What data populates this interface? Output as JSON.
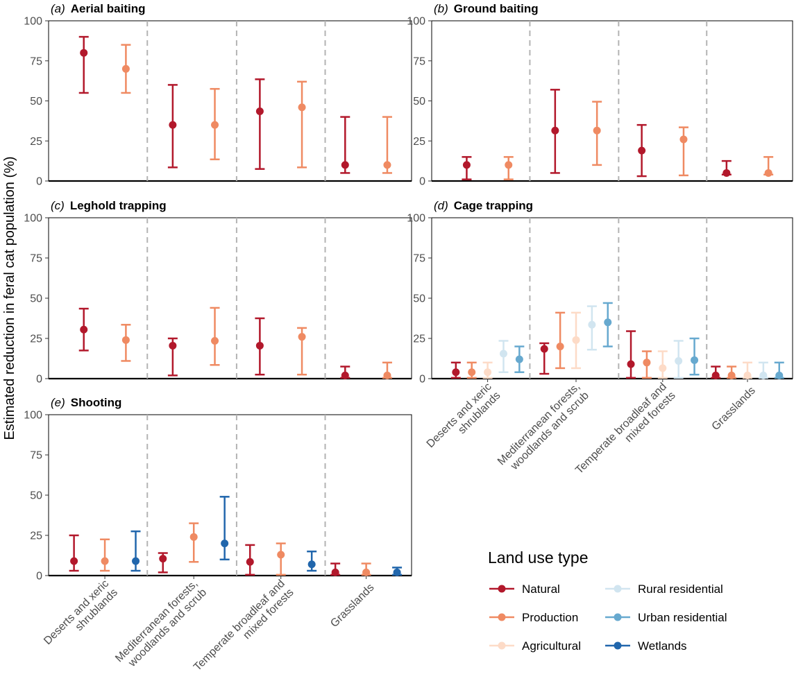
{
  "y_axis_label": "Estimated reduction in feral cat population (%)",
  "legend_title": "Land use type",
  "legend_items": [
    {
      "key": "natural",
      "label": "Natural",
      "color": "#b2182b"
    },
    {
      "key": "production",
      "label": "Production",
      "color": "#ef8a62"
    },
    {
      "key": "agricultural",
      "label": "Agricultural",
      "color": "#fddbc7"
    },
    {
      "key": "rural",
      "label": "Rural residential",
      "color": "#d1e5f0"
    },
    {
      "key": "urban",
      "label": "Urban residential",
      "color": "#67a9cf"
    },
    {
      "key": "wetlands",
      "label": "Wetlands",
      "color": "#2166ac"
    }
  ],
  "chart_data": [
    {
      "type": "scatter",
      "panel": "a",
      "letter": "(a)",
      "title": "Aerial baiting",
      "ylim": [
        0,
        100
      ],
      "yticks": [
        0,
        25,
        50,
        75,
        100
      ],
      "categories": [
        "Deserts and xeric shrublands",
        "Mediterranean forests, woodlands and scrub",
        "Temperate broadleaf and mixed forests",
        "Grasslands"
      ],
      "series": [
        {
          "key": "natural",
          "points": [
            {
              "c": 0,
              "y": 80,
              "lo": 55,
              "hi": 90
            },
            {
              "c": 1,
              "y": 35,
              "lo": 8.5,
              "hi": 60
            },
            {
              "c": 2,
              "y": 43.5,
              "lo": 7.5,
              "hi": 63.5
            },
            {
              "c": 3,
              "y": 10,
              "lo": 5,
              "hi": 40
            }
          ]
        },
        {
          "key": "production",
          "points": [
            {
              "c": 0,
              "y": 70,
              "lo": 55,
              "hi": 85
            },
            {
              "c": 1,
              "y": 35,
              "lo": 13.5,
              "hi": 57.5
            },
            {
              "c": 2,
              "y": 46,
              "lo": 8.5,
              "hi": 62
            },
            {
              "c": 3,
              "y": 10,
              "lo": 5,
              "hi": 40
            }
          ]
        }
      ]
    },
    {
      "type": "scatter",
      "panel": "b",
      "letter": "(b)",
      "title": "Ground baiting",
      "ylim": [
        0,
        100
      ],
      "yticks": [
        0,
        25,
        50,
        75,
        100
      ],
      "categories": [
        "Deserts and xeric shrublands",
        "Mediterranean forests, woodlands and scrub",
        "Temperate broadleaf and mixed forests",
        "Grasslands"
      ],
      "series": [
        {
          "key": "natural",
          "points": [
            {
              "c": 0,
              "y": 10,
              "lo": 1,
              "hi": 15
            },
            {
              "c": 1,
              "y": 31.5,
              "lo": 5,
              "hi": 57
            },
            {
              "c": 2,
              "y": 19,
              "lo": 3,
              "hi": 35
            },
            {
              "c": 3,
              "y": 5,
              "lo": 4,
              "hi": 12.5
            }
          ]
        },
        {
          "key": "production",
          "points": [
            {
              "c": 0,
              "y": 10,
              "lo": 1,
              "hi": 15
            },
            {
              "c": 1,
              "y": 31.5,
              "lo": 10,
              "hi": 49.5
            },
            {
              "c": 2,
              "y": 26,
              "lo": 3.5,
              "hi": 33.5
            },
            {
              "c": 3,
              "y": 5,
              "lo": 4,
              "hi": 15
            }
          ]
        }
      ]
    },
    {
      "type": "scatter",
      "panel": "c",
      "letter": "(c)",
      "title": "Leghold trapping",
      "ylim": [
        0,
        100
      ],
      "yticks": [
        0,
        25,
        50,
        75,
        100
      ],
      "categories": [
        "Deserts and xeric shrublands",
        "Mediterranean forests, woodlands and scrub",
        "Temperate broadleaf and mixed forests",
        "Grasslands"
      ],
      "series": [
        {
          "key": "natural",
          "points": [
            {
              "c": 0,
              "y": 30.5,
              "lo": 17.5,
              "hi": 43.5
            },
            {
              "c": 1,
              "y": 20.5,
              "lo": 2,
              "hi": 25
            },
            {
              "c": 2,
              "y": 20.5,
              "lo": 2.5,
              "hi": 37.5
            },
            {
              "c": 3,
              "y": 2,
              "lo": 0.5,
              "hi": 7.5
            }
          ]
        },
        {
          "key": "production",
          "points": [
            {
              "c": 0,
              "y": 24,
              "lo": 11,
              "hi": 33.5
            },
            {
              "c": 1,
              "y": 23.5,
              "lo": 8.5,
              "hi": 44
            },
            {
              "c": 2,
              "y": 26,
              "lo": 2.5,
              "hi": 31.5
            },
            {
              "c": 3,
              "y": 2,
              "lo": 0.5,
              "hi": 10
            }
          ]
        }
      ]
    },
    {
      "type": "scatter",
      "panel": "d",
      "letter": "(d)",
      "title": "Cage trapping",
      "ylim": [
        0,
        100
      ],
      "yticks": [
        0,
        25,
        50,
        75,
        100
      ],
      "categories": [
        "Deserts and xeric shrublands",
        "Mediterranean forests, woodlands and scrub",
        "Temperate broadleaf and mixed forests",
        "Grasslands"
      ],
      "series": [
        {
          "key": "natural",
          "points": [
            {
              "c": 0,
              "y": 4,
              "lo": 0.5,
              "hi": 10
            },
            {
              "c": 1,
              "y": 18.5,
              "lo": 3,
              "hi": 22
            },
            {
              "c": 2,
              "y": 9,
              "lo": 0.5,
              "hi": 29.5
            },
            {
              "c": 3,
              "y": 2,
              "lo": 0.5,
              "hi": 7.5
            }
          ]
        },
        {
          "key": "production",
          "points": [
            {
              "c": 0,
              "y": 4,
              "lo": 0.5,
              "hi": 10
            },
            {
              "c": 1,
              "y": 20,
              "lo": 6.5,
              "hi": 41
            },
            {
              "c": 2,
              "y": 10,
              "lo": 0.5,
              "hi": 17
            },
            {
              "c": 3,
              "y": 2,
              "lo": 0.5,
              "hi": 7.5
            }
          ]
        },
        {
          "key": "agricultural",
          "points": [
            {
              "c": 0,
              "y": 4,
              "lo": 0.5,
              "hi": 10
            },
            {
              "c": 1,
              "y": 24,
              "lo": 6.5,
              "hi": 41
            },
            {
              "c": 2,
              "y": 6.5,
              "lo": 0.5,
              "hi": 17
            },
            {
              "c": 3,
              "y": 2,
              "lo": 0.5,
              "hi": 10
            }
          ]
        },
        {
          "key": "rural",
          "points": [
            {
              "c": 0,
              "y": 15.5,
              "lo": 4,
              "hi": 23.5
            },
            {
              "c": 1,
              "y": 33.5,
              "lo": 18,
              "hi": 45
            },
            {
              "c": 2,
              "y": 11,
              "lo": 0.5,
              "hi": 23.5
            },
            {
              "c": 3,
              "y": 2,
              "lo": 0.5,
              "hi": 10
            }
          ]
        },
        {
          "key": "urban",
          "points": [
            {
              "c": 0,
              "y": 12,
              "lo": 4,
              "hi": 20
            },
            {
              "c": 1,
              "y": 35,
              "lo": 20,
              "hi": 47
            },
            {
              "c": 2,
              "y": 11.5,
              "lo": 2.5,
              "hi": 25
            },
            {
              "c": 3,
              "y": 2,
              "lo": 0.5,
              "hi": 10
            }
          ]
        }
      ]
    },
    {
      "type": "scatter",
      "panel": "e",
      "letter": "(e)",
      "title": "Shooting",
      "ylim": [
        0,
        100
      ],
      "yticks": [
        0,
        25,
        50,
        75,
        100
      ],
      "categories": [
        "Deserts and xeric shrublands",
        "Mediterranean forests, woodlands and scrub",
        "Temperate broadleaf and mixed forests",
        "Grasslands"
      ],
      "series": [
        {
          "key": "natural",
          "points": [
            {
              "c": 0,
              "y": 9,
              "lo": 3,
              "hi": 25
            },
            {
              "c": 1,
              "y": 10.5,
              "lo": 2,
              "hi": 14
            },
            {
              "c": 2,
              "y": 8.5,
              "lo": 0.5,
              "hi": 19
            },
            {
              "c": 3,
              "y": 2,
              "lo": 0.5,
              "hi": 7.5
            }
          ]
        },
        {
          "key": "production",
          "points": [
            {
              "c": 0,
              "y": 9,
              "lo": 3,
              "hi": 22.5
            },
            {
              "c": 1,
              "y": 24,
              "lo": 8.5,
              "hi": 32.5
            },
            {
              "c": 2,
              "y": 13,
              "lo": 0.5,
              "hi": 20
            },
            {
              "c": 3,
              "y": 2,
              "lo": 0.5,
              "hi": 7.5
            }
          ]
        },
        {
          "key": "wetlands",
          "points": [
            {
              "c": 0,
              "y": 9,
              "lo": 3,
              "hi": 27.5
            },
            {
              "c": 1,
              "y": 20,
              "lo": 10,
              "hi": 49
            },
            {
              "c": 2,
              "y": 7,
              "lo": 3,
              "hi": 15
            },
            {
              "c": 3,
              "y": 2,
              "lo": 0.5,
              "hi": 5
            }
          ]
        }
      ]
    }
  ]
}
